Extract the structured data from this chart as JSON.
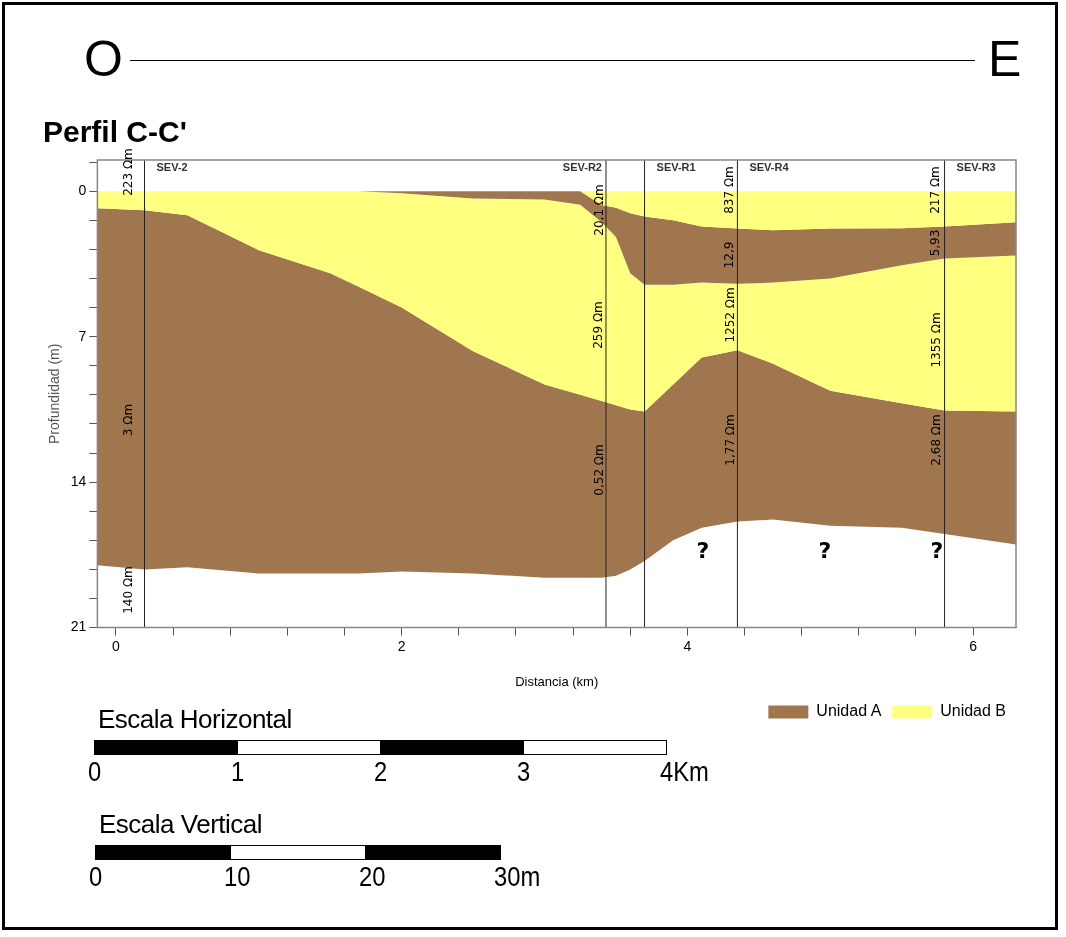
{
  "chart_data": {
    "type": "area",
    "title": "Perfil C-C'",
    "xlabel": "Distancia (km)",
    "ylabel": "Profundidad (m)",
    "stacked": true,
    "legend": "bottom right",
    "grid": false,
    "marker": "none",
    "x": [
      -0.13,
      0.2,
      0.5,
      1.0,
      1.5,
      1.7,
      2.0,
      2.5,
      3.0,
      3.25,
      3.4,
      3.5,
      3.6,
      3.7,
      3.9,
      4.1,
      4.35,
      4.6,
      5.0,
      5.5,
      5.8,
      6.3
    ],
    "series": [
      {
        "color": "#ffff80",
        "values": [
          0,
          0,
          0,
          0,
          0,
          0,
          0,
          0,
          0,
          0,
          0.67,
          0.8,
          1.06,
          1.22,
          1.4,
          1.7,
          1.8,
          1.88,
          1.8,
          1.78,
          1.7,
          1.5
        ]
      },
      {
        "color": "#a0764f",
        "values": [
          0,
          0,
          0,
          0,
          0,
          0,
          0.1,
          0.35,
          0.4,
          0.65,
          0.83,
          1.4,
          2.89,
          3.28,
          3.1,
          2.7,
          2.65,
          2.52,
          2.4,
          1.79,
          1.54,
          1.6
        ]
      },
      {
        "name": "Unidad B",
        "color": "#ffff80",
        "values": [
          0.82,
          0.92,
          1.16,
          2.84,
          3.95,
          4.6,
          5.5,
          7.35,
          8.9,
          9.15,
          8.6,
          8.1,
          6.55,
          6.1,
          4.8,
          3.6,
          3.2,
          3.9,
          5.4,
          6.63,
          7.31,
          7.5
        ]
      },
      {
        "name": "Unidad A",
        "color": "#a0764f",
        "values": [
          17.18,
          17.28,
          16.94,
          15.56,
          14.45,
          13.8,
          12.7,
          10.7,
          9.3,
          8.8,
          8.5,
          8.2,
          7.7,
          7.2,
          7.5,
          8.2,
          8.25,
          7.5,
          6.5,
          6.0,
          5.95,
          6.4
        ]
      }
    ],
    "xlim": [
      -0.13,
      6.3
    ],
    "ylim": [
      21,
      -1.5
    ],
    "xticks": [
      0,
      {
        "value": 0.4,
        "label": null
      },
      {
        "value": 0.8,
        "label": null
      },
      {
        "value": 1.2,
        "label": null
      },
      {
        "value": 1.6,
        "label": null
      },
      2,
      {
        "value": 2.4,
        "label": null
      },
      {
        "value": 2.8,
        "label": null
      },
      {
        "value": 3.2,
        "label": null
      },
      {
        "value": 3.6,
        "label": null
      },
      4,
      {
        "value": 4.4,
        "label": null
      },
      {
        "value": 4.8,
        "label": null
      },
      {
        "value": 5.2,
        "label": null
      },
      {
        "value": 5.6,
        "label": null
      },
      6
    ],
    "yticks": [
      {
        "value": -1.4,
        "label": null
      },
      0,
      {
        "value": 1.4,
        "label": null
      },
      {
        "value": 2.8,
        "label": null
      },
      {
        "value": 4.2,
        "label": null
      },
      {
        "value": 5.6,
        "label": null
      },
      7,
      {
        "value": 8.4,
        "label": null
      },
      {
        "value": 9.8,
        "label": null
      },
      {
        "value": 11.2,
        "label": null
      },
      {
        "value": 12.6,
        "label": null
      },
      14,
      {
        "value": 15.4,
        "label": null
      },
      {
        "value": 16.8,
        "label": null
      },
      {
        "value": 18.2,
        "label": null
      },
      {
        "value": 19.6,
        "label": null
      },
      21
    ],
    "ref_lines": [
      {
        "axis": "x",
        "value": 0.2,
        "label": "SEV-2"
      },
      {
        "axis": "x",
        "value": 3.43,
        "label": "SEV-R2"
      },
      {
        "axis": "x",
        "value": 3.7,
        "label": "SEV-R1"
      },
      {
        "axis": "x",
        "value": 4.35,
        "label": "SEV-R4"
      },
      {
        "axis": "x",
        "value": 5.8,
        "label": "SEV-R3"
      }
    ],
    "annotations": [
      "O",
      "E",
      "Escala Horizontal",
      "0",
      "1",
      "2",
      "3",
      "4Km",
      "Escala Vertical",
      "0",
      "10",
      "20",
      "30m",
      "223 Ωm",
      "3 Ωm",
      "140 Ωm",
      "20,1 Ωm",
      "259 Ωm",
      "0,52 Ωm",
      "837 Ωm",
      "12,9",
      "1252 Ωm",
      "1,77 Ωm",
      "217 Ωm",
      "5,93",
      "1355 Ωm",
      "2,68 Ωm",
      "?",
      "?",
      "?"
    ]
  }
}
